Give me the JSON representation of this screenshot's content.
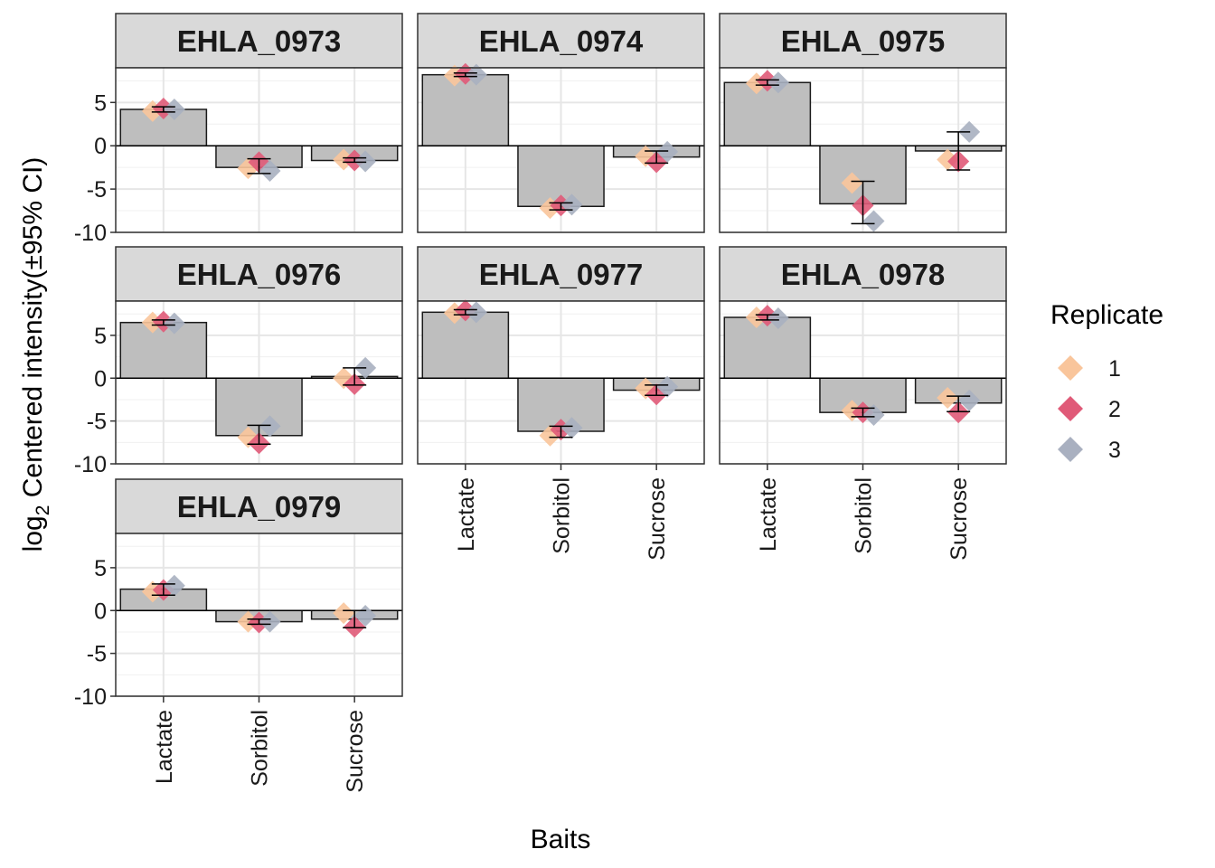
{
  "chart_data": {
    "type": "bar",
    "categories": [
      "Lactate",
      "Sorbitol",
      "Sucrose"
    ],
    "xlabel": "Baits",
    "ylabel": {
      "prefix": "log",
      "subscript": "2",
      "rest": " Centered intensity(±95% CI)"
    },
    "ylim": [
      -10,
      9
    ],
    "yticks": [
      5,
      0,
      -5,
      -10
    ],
    "grid": true,
    "bar_color": "#bebebe",
    "legend": {
      "title": "Replicate",
      "position": "right",
      "items": [
        {
          "name": "1",
          "color": "#f9c59b"
        },
        {
          "name": "2",
          "color": "#e05a78"
        },
        {
          "name": "3",
          "color": "#a9b0c0"
        }
      ]
    },
    "panels": [
      {
        "title": "EHLA_0973",
        "bars": [
          4.2,
          -2.5,
          -1.7
        ],
        "ci": [
          [
            3.9,
            4.5
          ],
          [
            -3.2,
            -1.5
          ],
          [
            -1.9,
            -1.4
          ]
        ],
        "replicates": [
          [
            4.0,
            4.3,
            4.2
          ],
          [
            -2.6,
            -1.9,
            -2.9
          ],
          [
            -1.6,
            -1.7,
            -1.8
          ]
        ]
      },
      {
        "title": "EHLA_0974",
        "bars": [
          8.2,
          -7.0,
          -1.3
        ],
        "ci": [
          [
            8.0,
            8.4
          ],
          [
            -7.4,
            -6.6
          ],
          [
            -2.0,
            -0.6
          ]
        ],
        "replicates": [
          [
            8.1,
            8.3,
            8.2
          ],
          [
            -7.2,
            -6.9,
            -6.8
          ],
          [
            -1.2,
            -1.9,
            -0.7
          ]
        ]
      },
      {
        "title": "EHLA_0975",
        "bars": [
          7.3,
          -6.7,
          -0.6
        ],
        "ci": [
          [
            7.0,
            7.6
          ],
          [
            -9.0,
            -4.1
          ],
          [
            -2.8,
            1.6
          ]
        ],
        "replicates": [
          [
            7.2,
            7.5,
            7.3
          ],
          [
            -4.3,
            -6.9,
            -8.7
          ],
          [
            -1.6,
            -1.8,
            1.6
          ]
        ]
      },
      {
        "title": "EHLA_0976",
        "bars": [
          6.5,
          -6.7,
          0.2
        ],
        "ci": [
          [
            6.2,
            6.8
          ],
          [
            -7.7,
            -5.5
          ],
          [
            -0.8,
            1.2
          ]
        ],
        "replicates": [
          [
            6.5,
            6.6,
            6.4
          ],
          [
            -6.9,
            -7.6,
            -5.6
          ],
          [
            0.0,
            -0.7,
            1.2
          ]
        ]
      },
      {
        "title": "EHLA_0977",
        "bars": [
          7.7,
          -6.2,
          -1.4
        ],
        "ci": [
          [
            7.4,
            8.0
          ],
          [
            -6.9,
            -5.6
          ],
          [
            -2.0,
            -0.8
          ]
        ],
        "replicates": [
          [
            7.6,
            7.9,
            7.7
          ],
          [
            -6.7,
            -6.0,
            -5.8
          ],
          [
            -1.2,
            -1.9,
            -1.0
          ]
        ]
      },
      {
        "title": "EHLA_0978",
        "bars": [
          7.1,
          -4.0,
          -2.9
        ],
        "ci": [
          [
            6.8,
            7.4
          ],
          [
            -4.5,
            -3.5
          ],
          [
            -3.9,
            -2.1
          ]
        ],
        "replicates": [
          [
            7.1,
            7.3,
            7.0
          ],
          [
            -3.8,
            -4.0,
            -4.3
          ],
          [
            -2.3,
            -4.0,
            -2.6
          ]
        ]
      },
      {
        "title": "EHLA_0979",
        "bars": [
          2.5,
          -1.3,
          -1.0
        ],
        "ci": [
          [
            1.8,
            3.1
          ],
          [
            -1.6,
            -1.0
          ],
          [
            -2.0,
            0.0
          ]
        ],
        "replicates": [
          [
            2.2,
            2.4,
            2.9
          ],
          [
            -1.3,
            -1.4,
            -1.3
          ],
          [
            -0.3,
            -1.9,
            -0.6
          ]
        ]
      }
    ]
  }
}
